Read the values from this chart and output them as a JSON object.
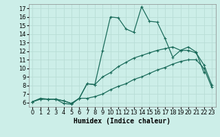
{
  "xlabel": "Humidex (Indice chaleur)",
  "bg_color": "#cceee8",
  "grid_color": "#b8ddd6",
  "line_color": "#1a6b5a",
  "xlim": [
    -0.5,
    23.5
  ],
  "ylim": [
    5.5,
    17.5
  ],
  "xticks": [
    0,
    1,
    2,
    3,
    4,
    5,
    6,
    7,
    8,
    9,
    10,
    11,
    12,
    13,
    14,
    15,
    16,
    17,
    18,
    19,
    20,
    21,
    22,
    23
  ],
  "yticks": [
    6,
    7,
    8,
    9,
    10,
    11,
    12,
    13,
    14,
    15,
    16,
    17
  ],
  "line1_x": [
    0,
    1,
    2,
    3,
    4,
    5,
    6,
    7,
    8,
    9,
    10,
    11,
    12,
    13,
    14,
    15,
    16,
    17,
    18,
    19,
    20,
    21,
    22
  ],
  "line1_y": [
    6.1,
    6.5,
    6.4,
    6.4,
    5.9,
    5.8,
    6.5,
    8.2,
    8.1,
    12.1,
    16.0,
    15.9,
    14.6,
    14.2,
    17.2,
    15.5,
    15.4,
    13.5,
    11.3,
    12.1,
    12.5,
    11.9,
    9.5
  ],
  "line2_x": [
    0,
    1,
    2,
    3,
    4,
    5,
    6,
    7,
    8,
    9,
    10,
    11,
    12,
    13,
    14,
    15,
    16,
    17,
    18,
    19,
    20,
    21,
    22,
    23
  ],
  "line2_y": [
    6.1,
    6.4,
    6.4,
    6.4,
    6.2,
    5.9,
    6.5,
    6.5,
    6.7,
    7.0,
    7.5,
    7.9,
    8.2,
    8.7,
    9.0,
    9.4,
    9.8,
    10.1,
    10.5,
    10.8,
    11.0,
    11.0,
    10.0,
    7.8
  ],
  "line3_x": [
    0,
    1,
    2,
    3,
    4,
    5,
    6,
    7,
    8,
    9,
    10,
    11,
    12,
    13,
    14,
    15,
    16,
    17,
    18,
    19,
    20,
    21,
    22,
    23
  ],
  "line3_y": [
    6.1,
    6.4,
    6.4,
    6.4,
    6.2,
    5.9,
    6.5,
    8.2,
    8.1,
    9.0,
    9.5,
    10.2,
    10.7,
    11.2,
    11.5,
    11.8,
    12.1,
    12.3,
    12.5,
    12.1,
    12.1,
    11.8,
    10.4,
    8.1
  ],
  "markersize": 2.5,
  "linewidth": 0.9,
  "xlabel_fontsize": 7,
  "tick_fontsize": 6
}
